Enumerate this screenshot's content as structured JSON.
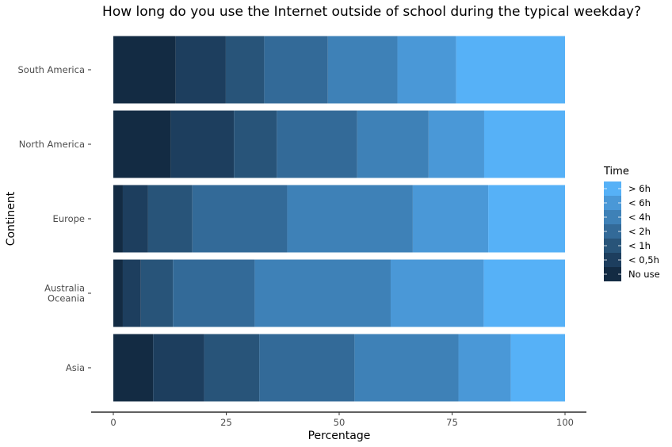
{
  "chart_data": {
    "type": "bar",
    "orientation": "horizontal",
    "stacked": true,
    "title": "How long do you use the Internet outside of school during the typical weekday?",
    "xlabel": "Percentage",
    "ylabel": "Continent",
    "xlim": [
      0,
      100
    ],
    "xticks": [
      0,
      25,
      50,
      75,
      100
    ],
    "grid": false,
    "legend_position": "right",
    "legend_title": "Time",
    "categories": [
      "South America",
      "North America",
      "Europe",
      "Australia\nOceania",
      "Asia"
    ],
    "series": [
      {
        "name": "No use",
        "color": "#132b43",
        "values": [
          13.8,
          12.7,
          2.1,
          2.1,
          8.8
        ]
      },
      {
        "name": "< 0,5h",
        "color": "#1d3e5e",
        "values": [
          11.1,
          14.0,
          5.6,
          4.0,
          11.3
        ]
      },
      {
        "name": "< 1h",
        "color": "#285479",
        "values": [
          8.5,
          9.5,
          9.8,
          7.1,
          12.2
        ]
      },
      {
        "name": "< 2h",
        "color": "#336a98",
        "values": [
          14.1,
          17.8,
          21.0,
          18.1,
          21.1
        ]
      },
      {
        "name": "< 4h",
        "color": "#3e81b7",
        "values": [
          15.4,
          15.8,
          27.8,
          30.1,
          23.0
        ]
      },
      {
        "name": "< 6h",
        "color": "#4a98d7",
        "values": [
          13.0,
          12.3,
          16.7,
          20.6,
          11.6
        ]
      },
      {
        "name": "> 6h",
        "color": "#56b1f7",
        "values": [
          24.1,
          17.9,
          17.0,
          18.0,
          12.0
        ]
      }
    ]
  }
}
